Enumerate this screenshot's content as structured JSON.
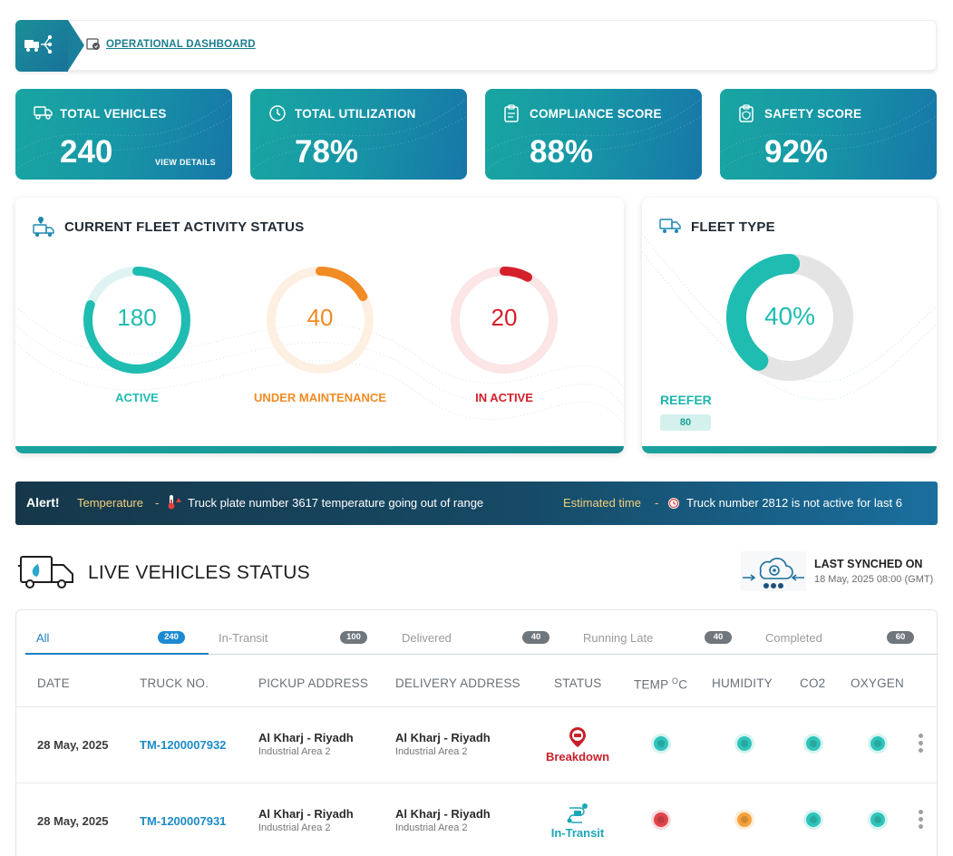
{
  "header": {
    "title": "OPERATIONAL DASHBOARD"
  },
  "kpis": [
    {
      "label": "TOTAL VEHICLES",
      "value": "240",
      "link": "VIEW DETAILS",
      "icon": "truck-icon"
    },
    {
      "label": "TOTAL UTILIZATION",
      "value": "78%",
      "icon": "clock-icon"
    },
    {
      "label": "COMPLIANCE SCORE",
      "value": "88%",
      "icon": "clipboard-icon"
    },
    {
      "label": "SAFETY SCORE",
      "value": "92%",
      "icon": "shield-check-icon"
    }
  ],
  "fleet_activity": {
    "title": "CURRENT FLEET ACTIVITY STATUS",
    "items": [
      {
        "value": "180",
        "label": "ACTIVE",
        "fraction": 0.8,
        "color": "#1fbcb1",
        "track": "#dff3f2"
      },
      {
        "value": "40",
        "label": "UNDER MAINTENANCE",
        "fraction": 0.17,
        "color": "#f18b24",
        "track": "#fdf0e2"
      },
      {
        "value": "20",
        "label": "IN ACTIVE",
        "fraction": 0.08,
        "color": "#d3202b",
        "track": "#fbe5e5"
      }
    ]
  },
  "fleet_type": {
    "title": "FLEET TYPE",
    "percent_label": "40%",
    "fraction": 0.4,
    "type_label": "REEFER",
    "type_count": "80",
    "color": "#1fbcb1",
    "track": "#e4e4e4"
  },
  "alert": {
    "label": "Alert!",
    "item1_key": "Temperature",
    "item1_sep": "-",
    "item1_text": "Truck plate number 3617 temperature going out of range",
    "item2_key": "Estimated time",
    "item2_sep": "-",
    "item2_text": "Truck number 2812 is not active for last 6"
  },
  "live": {
    "title": "LIVE VEHICLES STATUS",
    "sync_label": "LAST SYNCHED ON",
    "sync_date": "18 May, 2025 08:00 (GMT)"
  },
  "tabs": [
    {
      "label": "All",
      "count": "240",
      "active": true
    },
    {
      "label": "In-Transit",
      "count": "100"
    },
    {
      "label": "Delivered",
      "count": "40"
    },
    {
      "label": "Running Late",
      "count": "40"
    },
    {
      "label": "Completed",
      "count": "60"
    }
  ],
  "columns": [
    "DATE",
    "TRUCK NO.",
    "PICKUP ADDRESS",
    "DELIVERY ADDRESS",
    "STATUS",
    "TEMP",
    "HUMIDITY",
    "CO2",
    "OXYGEN"
  ],
  "temp_unit_sup": "O",
  "temp_unit": "C",
  "rows": [
    {
      "date": "28 May, 2025",
      "truck": "TM-1200007932",
      "pickup_1": "Al Kharj - Riyadh",
      "pickup_2": "Industrial Area 2",
      "delivery_1": "Al Kharj - Riyadh",
      "delivery_2": "Industrial Area 2",
      "status": "Breakdown",
      "status_color": "#c8202a",
      "sensors": [
        "#2fc4bb",
        "#2fc4bb",
        "#2fc4bb",
        "#2fc4bb"
      ]
    },
    {
      "date": "28 May, 2025",
      "truck": "TM-1200007931",
      "pickup_1": "Al Kharj - Riyadh",
      "pickup_2": "Industrial Area 2",
      "delivery_1": "Al Kharj - Riyadh",
      "delivery_2": "Industrial Area 2",
      "status": "In-Transit",
      "status_color": "#1aa7b8",
      "sensors": [
        "#e0444a",
        "#f6a13a",
        "#2fc4bb",
        "#2fc4bb"
      ]
    }
  ]
}
